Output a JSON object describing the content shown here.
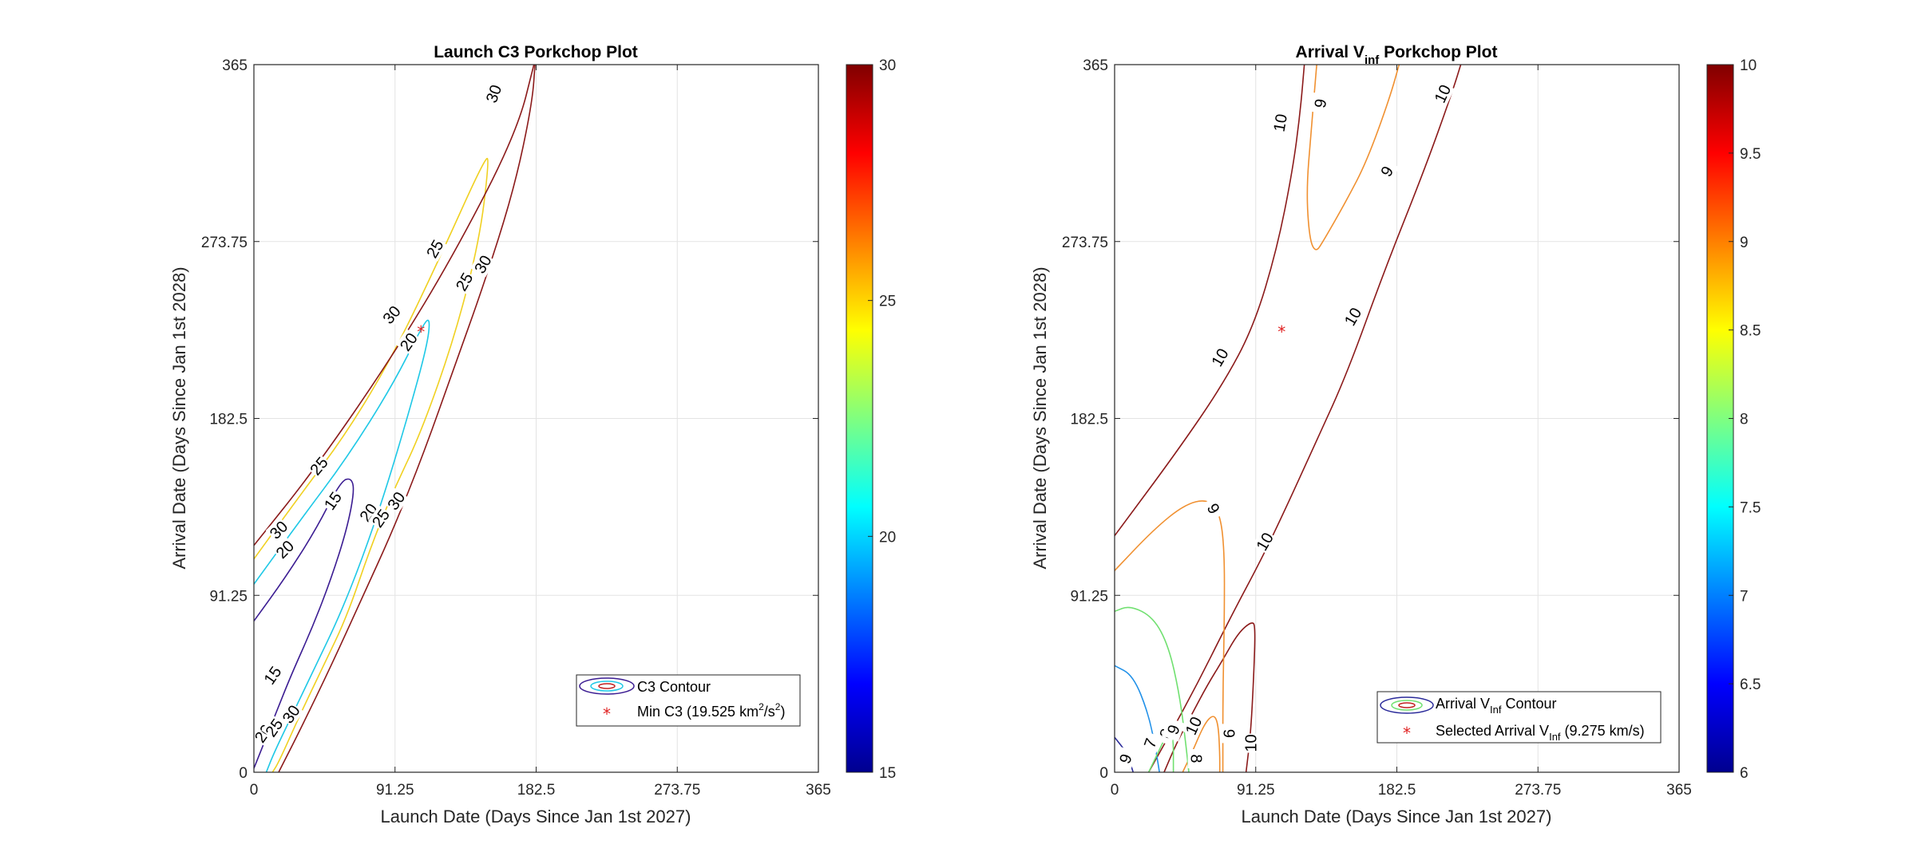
{
  "chart_data": [
    {
      "type": "contour",
      "title": "Launch C3 Porkchop Plot",
      "xlabel": "Launch Date (Days Since Jan 1st 2027)",
      "ylabel": "Arrival Date (Days Since Jan 1st 2028)",
      "xlim": [
        0,
        365
      ],
      "ylim": [
        0,
        365
      ],
      "x_ticks": [
        "0",
        "91.25",
        "182.5",
        "273.75",
        "365"
      ],
      "y_ticks": [
        "0",
        "91.25",
        "182.5",
        "273.75",
        "365"
      ],
      "grid": true,
      "legend_position": "bottom-right",
      "legend": [
        {
          "label": "C3 Contour"
        },
        {
          "label_prefix": "Min C3 (19.525 km",
          "sup1": "2",
          "mid": "/s",
          "sup2": "2",
          "suffix": ")"
        }
      ],
      "colorbar": {
        "min": 15,
        "max": 30,
        "ticks": [
          "15",
          "20",
          "25",
          "30"
        ],
        "colormap": "jet"
      },
      "levels": [
        15,
        20,
        25,
        30
      ],
      "level_colors": {
        "15": "#3b1c92",
        "20": "#1ec8e6",
        "25": "#f0d020",
        "30": "#8b1a1a"
      },
      "contours": [
        {
          "level": 15,
          "points": [
            [
              0,
              78
            ],
            [
              20,
              100
            ],
            [
              40,
              125
            ],
            [
              56,
              150
            ],
            [
              63,
              152
            ],
            [
              65,
              145
            ],
            [
              60,
              125
            ],
            [
              50,
              100
            ],
            [
              38,
              75
            ],
            [
              24,
              50
            ],
            [
              14,
              30
            ],
            [
              4,
              10
            ],
            [
              0,
              2
            ]
          ]
        },
        {
          "level": 20,
          "points": [
            [
              0,
              97
            ],
            [
              30,
              130
            ],
            [
              60,
              162
            ],
            [
              90,
              200
            ],
            [
              110,
              232
            ],
            [
              114,
              234
            ],
            [
              112,
              220
            ],
            [
              100,
              185
            ],
            [
              85,
              145
            ],
            [
              70,
              110
            ],
            [
              55,
              80
            ],
            [
              40,
              55
            ],
            [
              25,
              30
            ],
            [
              13,
              10
            ],
            [
              8,
              0
            ]
          ]
        },
        {
          "level": 25,
          "points": [
            [
              0,
              110
            ],
            [
              30,
              143
            ],
            [
              60,
              175
            ],
            [
              90,
              215
            ],
            [
              120,
              265
            ],
            [
              150,
              318
            ],
            [
              152,
              315
            ],
            [
              146,
              275
            ],
            [
              130,
              225
            ],
            [
              108,
              175
            ],
            [
              90,
              145
            ],
            [
              75,
              115
            ],
            [
              60,
              80
            ],
            [
              45,
              55
            ],
            [
              30,
              30
            ],
            [
              16,
              5
            ],
            [
              12,
              0
            ]
          ]
        },
        {
          "level": 30,
          "points": [
            [
              0,
              117
            ],
            [
              40,
              157
            ],
            [
              90,
              215
            ],
            [
              130,
              268
            ],
            [
              170,
              330
            ],
            [
              182,
              368
            ],
            [
              182,
              368
            ],
            [
              180,
              345
            ],
            [
              168,
              300
            ],
            [
              148,
              250
            ],
            [
              130,
              210
            ],
            [
              110,
              165
            ],
            [
              90,
              125
            ],
            [
              70,
              90
            ],
            [
              50,
              55
            ],
            [
              30,
              22
            ],
            [
              16,
              0
            ]
          ]
        }
      ],
      "contour_labels": [
        {
          "text": "30",
          "x": 155,
          "y": 350,
          "rot": -70
        },
        {
          "text": "25",
          "x": 117,
          "y": 270,
          "rot": -60
        },
        {
          "text": "25",
          "x": 136,
          "y": 253,
          "rot": -60
        },
        {
          "text": "30",
          "x": 148,
          "y": 262,
          "rot": -60
        },
        {
          "text": "30",
          "x": 89,
          "y": 236,
          "rot": -50
        },
        {
          "text": "20",
          "x": 100,
          "y": 222,
          "rot": -55
        },
        {
          "text": "25",
          "x": 42,
          "y": 158,
          "rot": -50
        },
        {
          "text": "15",
          "x": 51,
          "y": 140,
          "rot": -55
        },
        {
          "text": "20",
          "x": 74,
          "y": 134,
          "rot": -55
        },
        {
          "text": "25",
          "x": 82,
          "y": 131,
          "rot": -55
        },
        {
          "text": "30",
          "x": 92,
          "y": 140,
          "rot": -55
        },
        {
          "text": "30",
          "x": 16,
          "y": 125,
          "rot": -45
        },
        {
          "text": "20",
          "x": 20,
          "y": 115,
          "rot": -45
        },
        {
          "text": "15",
          "x": 12,
          "y": 50,
          "rot": -55
        },
        {
          "text": "20",
          "x": 6,
          "y": 20,
          "rot": -55
        },
        {
          "text": "25",
          "x": 13,
          "y": 23,
          "rot": -55
        },
        {
          "text": "30",
          "x": 24,
          "y": 30,
          "rot": -55
        }
      ],
      "marker": {
        "x": 108,
        "y": 228
      }
    },
    {
      "type": "contour",
      "title_main": "Arrival V",
      "title_sub": "inf",
      "title_rest": " Porkchop Plot",
      "xlabel": "Launch Date (Days Since Jan 1st 2027)",
      "ylabel": "Arrival Date (Days Since Jan 1st 2028)",
      "xlim": [
        0,
        365
      ],
      "ylim": [
        0,
        365
      ],
      "x_ticks": [
        "0",
        "91.25",
        "182.5",
        "273.75",
        "365"
      ],
      "y_ticks": [
        "0",
        "91.25",
        "182.5",
        "273.75",
        "365"
      ],
      "grid": true,
      "legend_position": "bottom-right",
      "legend": [
        {
          "pre": "Arrival V",
          "sub": "Inf",
          "post": " Contour"
        },
        {
          "pre": "Selected Arrival V",
          "sub": "Inf",
          "post": " (9.275 km/s)"
        }
      ],
      "colorbar": {
        "min": 6,
        "max": 10,
        "ticks": [
          "6",
          "6.5",
          "7",
          "7.5",
          "8",
          "8.5",
          "9",
          "9.5",
          "10"
        ],
        "colormap": "jet"
      },
      "levels": [
        6,
        7,
        8,
        9,
        10
      ],
      "level_colors": {
        "6": "#2a2a9a",
        "7": "#2090e8",
        "8": "#70e070",
        "9": "#f09030",
        "10": "#8b1a1a"
      },
      "contours": [
        {
          "level": 10,
          "points": [
            [
              0,
              122
            ],
            [
              40,
              165
            ],
            [
              70,
              200
            ],
            [
              90,
              230
            ],
            [
              105,
              270
            ],
            [
              115,
              310
            ],
            [
              120,
              340
            ],
            [
              123,
              368
            ]
          ]
        },
        {
          "level": 10,
          "points": [
            [
              22,
              0
            ],
            [
              50,
              40
            ],
            [
              75,
              80
            ],
            [
              95,
              110
            ],
            [
              110,
              135
            ],
            [
              130,
              170
            ],
            [
              150,
              205
            ],
            [
              175,
              260
            ],
            [
              200,
              310
            ],
            [
              218,
              350
            ],
            [
              225,
              368
            ]
          ]
        },
        {
          "level": 10,
          "points": [
            [
              85,
              0
            ],
            [
              88,
              20
            ],
            [
              90,
              50
            ],
            [
              91,
              75
            ],
            [
              89,
              78
            ],
            [
              80,
              72
            ],
            [
              70,
              58
            ],
            [
              60,
              45
            ],
            [
              50,
              30
            ],
            [
              40,
              15
            ],
            [
              32,
              0
            ]
          ]
        },
        {
          "level": 9,
          "points": [
            [
              0,
              104
            ],
            [
              25,
              125
            ],
            [
              45,
              138
            ],
            [
              60,
              141
            ],
            [
              68,
              134
            ],
            [
              71,
              115
            ],
            [
              71,
              80
            ],
            [
              70,
              40
            ],
            [
              70,
              0
            ]
          ]
        },
        {
          "level": 9,
          "points": [
            [
              185,
              368
            ],
            [
              178,
              348
            ],
            [
              163,
              315
            ],
            [
              150,
              295
            ],
            [
              135,
              274
            ],
            [
              130,
              268
            ],
            [
              126,
              275
            ],
            [
              124,
              300
            ],
            [
              127,
              330
            ],
            [
              131,
              368
            ]
          ]
        },
        {
          "level": 9,
          "points": [
            [
              44,
              0
            ],
            [
              50,
              10
            ],
            [
              58,
              25
            ],
            [
              64,
              30
            ],
            [
              67,
              25
            ],
            [
              68,
              10
            ],
            [
              68,
              0
            ]
          ]
        },
        {
          "level": 8,
          "points": [
            [
              0,
              83
            ],
            [
              10,
              86
            ],
            [
              25,
              80
            ],
            [
              35,
              65
            ],
            [
              42,
              40
            ],
            [
              46,
              15
            ],
            [
              48,
              0
            ]
          ]
        },
        {
          "level": 7,
          "points": [
            [
              0,
              55
            ],
            [
              12,
              50
            ],
            [
              22,
              30
            ],
            [
              27,
              10
            ],
            [
              29,
              0
            ]
          ]
        },
        {
          "level": 6,
          "points": [
            [
              0,
              18
            ],
            [
              8,
              10
            ],
            [
              12,
              0
            ]
          ]
        },
        {
          "level": 8,
          "points": [
            [
              22,
              0
            ],
            [
              28,
              10
            ],
            [
              34,
              20
            ],
            [
              38,
              20
            ],
            [
              38,
              0
            ]
          ]
        }
      ],
      "contour_labels": [
        {
          "text": "10",
          "x": 107,
          "y": 335,
          "rot": -80
        },
        {
          "text": "9",
          "x": 133,
          "y": 345,
          "rot": -80
        },
        {
          "text": "10",
          "x": 212,
          "y": 350,
          "rot": -65
        },
        {
          "text": "9",
          "x": 176,
          "y": 310,
          "rot": -60
        },
        {
          "text": "10",
          "x": 154,
          "y": 235,
          "rot": -60
        },
        {
          "text": "10",
          "x": 68,
          "y": 214,
          "rot": -60
        },
        {
          "text": "9",
          "x": 64,
          "y": 136,
          "rot": 60
        },
        {
          "text": "10",
          "x": 97,
          "y": 119,
          "rot": -60
        },
        {
          "text": "9",
          "x": 7,
          "y": 7,
          "rot": -70
        },
        {
          "text": "7",
          "x": 23,
          "y": 15,
          "rot": -70
        },
        {
          "text": "8",
          "x": 33,
          "y": 20,
          "rot": -70
        },
        {
          "text": "9",
          "x": 38,
          "y": 22,
          "rot": -70
        },
        {
          "text": "10",
          "x": 51,
          "y": 24,
          "rot": -65
        },
        {
          "text": "8",
          "x": 53,
          "y": 7,
          "rot": 90
        },
        {
          "text": "6",
          "x": 74,
          "y": 20,
          "rot": -90
        },
        {
          "text": "10",
          "x": 88,
          "y": 15,
          "rot": -90
        }
      ],
      "marker": {
        "x": 108,
        "y": 228
      }
    }
  ]
}
